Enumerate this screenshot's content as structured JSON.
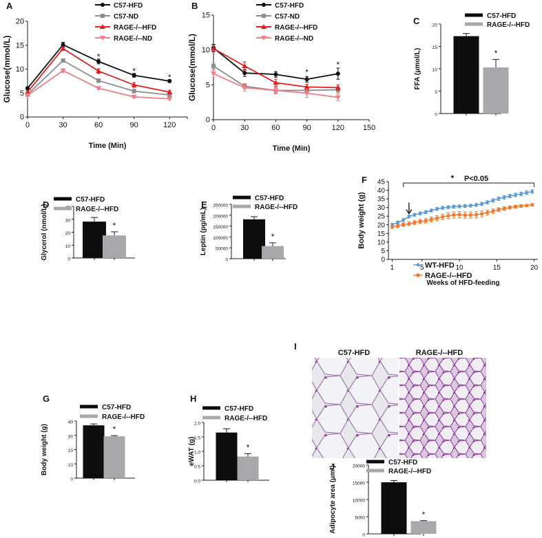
{
  "colors": {
    "black": "#0d0d0d",
    "gray": "#8c8c8c",
    "red": "#e0201e",
    "pink": "#f07f86",
    "lightgray": "#a8a8ac",
    "blue": "#4f94d8",
    "orange": "#ef7a2c"
  },
  "chart_data": [
    {
      "id": "A",
      "panel_label": "A",
      "type": "line",
      "xlabel": "Time (Min)",
      "ylabel": "Glucose(mmol/L)",
      "xlim": [
        0,
        135
      ],
      "ylim": [
        0,
        20
      ],
      "xticks": [
        "0",
        "30",
        "60",
        "90",
        "120"
      ],
      "yticks": [
        "0",
        "5",
        "10",
        "15",
        "20"
      ],
      "x": [
        0,
        30,
        60,
        90,
        120
      ],
      "series": [
        {
          "name": "C57-HFD",
          "color": "#0d0d0d",
          "marker": "circle",
          "values": [
            6.0,
            15.1,
            11.6,
            8.7,
            7.5
          ],
          "err": [
            0.3,
            0.5,
            0.5,
            0.4,
            0.3
          ]
        },
        {
          "name": "C57-ND",
          "color": "#8c8c8c",
          "marker": "square",
          "values": [
            4.7,
            11.8,
            7.6,
            5.4,
            4.6
          ],
          "err": [
            0.2,
            0.3,
            0.4,
            0.4,
            0.3
          ]
        },
        {
          "name": "RAGE-/--HFD",
          "color": "#e0201e",
          "marker": "triangle",
          "values": [
            5.2,
            14.3,
            9.6,
            6.7,
            5.2
          ],
          "err": [
            0.3,
            0.4,
            0.5,
            0.5,
            0.4
          ]
        },
        {
          "name": "RAGE-/--ND",
          "color": "#f07f86",
          "marker": "triangle-down",
          "values": [
            4.5,
            9.7,
            6.0,
            4.2,
            3.8
          ],
          "err": [
            0.2,
            0.4,
            0.3,
            0.2,
            0.2
          ]
        }
      ],
      "stars": [
        "*",
        "*",
        "*"
      ],
      "star_x": [
        60,
        90,
        120
      ],
      "star_y": [
        12.6,
        9.6,
        8.3
      ]
    },
    {
      "id": "B",
      "panel_label": "B",
      "type": "line",
      "xlabel": "Time (Min)",
      "ylabel": "Glucose(mmol/L)",
      "xlim": [
        0,
        150
      ],
      "ylim": [
        0,
        15
      ],
      "xticks": [
        "0",
        "30",
        "60",
        "90",
        "120",
        "150"
      ],
      "yticks": [
        "0",
        "5",
        "10",
        "15"
      ],
      "x": [
        0,
        30,
        60,
        90,
        120
      ],
      "series": [
        {
          "name": "C57-HFD",
          "color": "#0d0d0d",
          "marker": "circle",
          "values": [
            10.3,
            6.7,
            6.5,
            5.8,
            6.6
          ],
          "err": [
            0.5,
            0.5,
            0.4,
            0.4,
            0.8
          ]
        },
        {
          "name": "C57-ND",
          "color": "#8c8c8c",
          "marker": "square",
          "values": [
            7.7,
            4.8,
            4.2,
            4.2,
            4.3
          ],
          "err": [
            0.4,
            0.4,
            0.4,
            0.4,
            0.4
          ]
        },
        {
          "name": "RAGE-/--HFD",
          "color": "#e0201e",
          "marker": "triangle",
          "values": [
            10.2,
            7.7,
            5.3,
            4.7,
            4.6
          ],
          "err": [
            0.5,
            0.6,
            0.5,
            0.4,
            0.4
          ]
        },
        {
          "name": "RAGE-/--ND",
          "color": "#f07f86",
          "marker": "triangle-down",
          "values": [
            6.6,
            4.6,
            4.2,
            3.8,
            3.2
          ],
          "err": [
            0.5,
            0.5,
            0.5,
            0.6,
            0.5
          ]
        }
      ],
      "stars": [
        "*",
        "*"
      ],
      "star_x": [
        90,
        120
      ],
      "star_y": [
        6.8,
        7.9
      ]
    },
    {
      "id": "C",
      "panel_label": "C",
      "type": "bar",
      "ylabel": "FFA (μmol/L)",
      "ylim": [
        0,
        20
      ],
      "yticks": [
        "0",
        "5",
        "10",
        "15",
        "20"
      ],
      "categories": [
        "C57-HFD",
        "RAGE-/--HFD"
      ],
      "values": [
        17.3,
        10.3
      ],
      "err": [
        0.6,
        1.8
      ],
      "colors": [
        "#0d0d0d",
        "#a8a8ac"
      ],
      "star": "*"
    },
    {
      "id": "D",
      "panel_label": "D",
      "type": "bar",
      "ylabel": "Glycerol (nmol/L)",
      "ylim": [
        0,
        40
      ],
      "yticks": [
        "0",
        "10",
        "20",
        "30",
        "40"
      ],
      "categories": [
        "C57-HFD",
        "RAGE-/--HFD"
      ],
      "values": [
        28.2,
        17.5
      ],
      "err": [
        3.2,
        2.8
      ],
      "colors": [
        "#0d0d0d",
        "#a8a8ac"
      ],
      "star": "*"
    },
    {
      "id": "E",
      "panel_label": "E",
      "type": "bar",
      "ylabel": "Leptin (pg/mL)",
      "ylim": [
        0,
        250000
      ],
      "yticks": [
        "0",
        "50000",
        "100000",
        "150000",
        "200000",
        "250000"
      ],
      "categories": [
        "C57-HFD",
        "RAGE-/--HFD"
      ],
      "values": [
        181000,
        58000
      ],
      "err": [
        12000,
        15000
      ],
      "colors": [
        "#0d0d0d",
        "#a8a8ac"
      ],
      "star": "*"
    },
    {
      "id": "F",
      "panel_label": "F",
      "type": "line",
      "xlabel": "Weeks of HFD-feeding",
      "ylabel": "Body weight (g)",
      "xlim": [
        0.5,
        20.5
      ],
      "ylim": [
        0,
        45
      ],
      "xticks": [
        "1",
        "5",
        "10",
        "15",
        "20"
      ],
      "yticks": [
        "0",
        "5",
        "10",
        "15",
        "20",
        "25",
        "30",
        "35",
        "40",
        "45"
      ],
      "x": [
        1,
        1.75,
        2.5,
        3.25,
        4,
        4.75,
        5.5,
        6.25,
        7,
        7.75,
        8.5,
        9.25,
        10,
        10.75,
        11.5,
        12.25,
        13,
        13.75,
        14.5,
        15.25,
        16,
        16.75,
        17.5,
        18.25,
        19,
        19.75
      ],
      "series": [
        {
          "name": "WT-HFD",
          "color": "#4f94d8",
          "marker": "diamond",
          "values": [
            20,
            21.3,
            22.8,
            24.8,
            25.8,
            26.6,
            27.3,
            28.3,
            29.2,
            29.8,
            30.2,
            30.5,
            30.7,
            30.9,
            31.1,
            31.5,
            32.1,
            33,
            34.1,
            35.1,
            35.9,
            36.6,
            37.3,
            37.9,
            38.6,
            39.3
          ],
          "err": [
            0.8,
            0.8,
            0.8,
            0.8,
            0.8,
            0.8,
            0.8,
            0.8,
            0.8,
            0.8,
            0.8,
            0.8,
            0.8,
            0.8,
            0.8,
            0.8,
            0.9,
            0.9,
            1,
            1,
            1,
            1,
            1,
            1,
            1,
            1
          ]
        },
        {
          "name": "RAGE-/--HFD",
          "color": "#ef7a2c",
          "marker": "square",
          "values": [
            18.8,
            19.4,
            20.1,
            20.6,
            21.3,
            21.9,
            22.3,
            23.1,
            23.8,
            24.6,
            25.2,
            25.7,
            25.9,
            25.6,
            25.7,
            25.8,
            26.3,
            27.1,
            27.9,
            28.8,
            29.4,
            30,
            30.5,
            30.9,
            31.2,
            31.6
          ],
          "err": [
            0.9,
            1,
            1,
            1,
            1.1,
            1.2,
            1.3,
            1.4,
            1.5,
            1.6,
            1.7,
            1.8,
            1.8,
            1.8,
            1.8,
            1.8,
            1.7,
            1.5,
            1.3,
            1.1,
            1,
            0.9,
            0.8,
            0.8,
            0.7,
            0.7
          ]
        }
      ],
      "annotation": {
        "star": "*",
        "text": "P<0.05"
      },
      "arrow_at_week": 3.25
    },
    {
      "id": "G",
      "panel_label": "G",
      "type": "bar",
      "ylabel": "Body weight (g)",
      "ylim": [
        0,
        40
      ],
      "yticks": [
        "0",
        "10",
        "20",
        "30",
        "40"
      ],
      "categories": [
        "C57-HFD",
        "RAGE-/--HFD"
      ],
      "values": [
        37,
        29.3
      ],
      "err": [
        1.0,
        0.5
      ],
      "colors": [
        "#0d0d0d",
        "#a8a8ac"
      ],
      "star": "*"
    },
    {
      "id": "H",
      "panel_label": "H",
      "type": "bar",
      "ylabel": "eWAT (g)",
      "ylim": [
        0,
        2.0
      ],
      "yticks": [
        "0.0",
        "0.5",
        "1.0",
        "1.5",
        "2.0"
      ],
      "categories": [
        "C57-HFD",
        "RAGE-/--HFD"
      ],
      "values": [
        1.65,
        0.82
      ],
      "err": [
        0.13,
        0.1
      ],
      "colors": [
        "#0d0d0d",
        "#a8a8ac"
      ],
      "star": "*"
    },
    {
      "id": "J",
      "panel_label": "J",
      "type": "bar",
      "ylabel": "Adipocyte area (μm²)",
      "ylim": [
        0,
        20000
      ],
      "yticks": [
        "0",
        "5000",
        "10000",
        "15000",
        "20000"
      ],
      "categories": [
        "C57-HFD",
        "RAGE-/--HFD"
      ],
      "values": [
        15000,
        3700
      ],
      "err": [
        500,
        150
      ],
      "colors": [
        "#0d0d0d",
        "#a8a8ac"
      ],
      "star": "*"
    }
  ],
  "histology": {
    "panel_label": "I",
    "left_title": "C57-HFD",
    "right_title": "RAGE-/--HFD"
  }
}
